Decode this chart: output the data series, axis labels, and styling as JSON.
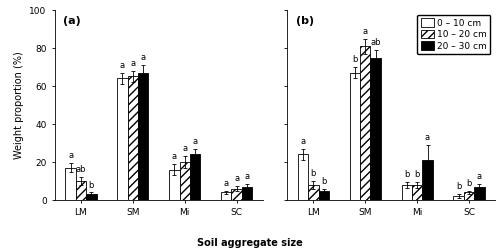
{
  "panel_a": {
    "label": "(a)",
    "categories": [
      "LM",
      "SM",
      "Mi",
      "SC"
    ],
    "values": {
      "0-10": [
        17,
        64,
        16,
        4
      ],
      "10-20": [
        10,
        65,
        20,
        6
      ],
      "20-30": [
        3,
        67,
        24,
        7
      ]
    },
    "errors": {
      "0-10": [
        2.5,
        3,
        3,
        1
      ],
      "10-20": [
        2,
        3,
        3,
        1.5
      ],
      "20-30": [
        1,
        4,
        3,
        1.5
      ]
    },
    "sig_labels": {
      "LM": [
        "a",
        "ab",
        "b"
      ],
      "SM": [
        "a",
        "a",
        "a"
      ],
      "Mi": [
        "a",
        "a",
        "a"
      ],
      "SC": [
        "a",
        "a",
        "a"
      ]
    }
  },
  "panel_b": {
    "label": "(b)",
    "categories": [
      "LM",
      "SM",
      "Mi",
      "SC"
    ],
    "values": {
      "0-10": [
        24,
        67,
        8,
        2
      ],
      "10-20": [
        8,
        81,
        8,
        4
      ],
      "20-30": [
        5,
        75,
        21,
        7
      ]
    },
    "errors": {
      "0-10": [
        3,
        3,
        1.5,
        1
      ],
      "10-20": [
        2,
        4,
        1.5,
        1
      ],
      "20-30": [
        1,
        4,
        8,
        1.5
      ]
    },
    "sig_labels": {
      "LM": [
        "a",
        "b",
        "b"
      ],
      "SM": [
        "b",
        "a",
        "ab"
      ],
      "Mi": [
        "b",
        "b",
        "a"
      ],
      "SC": [
        "b",
        "b",
        "a"
      ]
    }
  },
  "legend_labels": [
    "0 – 10 cm",
    "10 – 20 cm",
    "20 – 30 cm"
  ],
  "bar_colors": [
    "white",
    "white",
    "black"
  ],
  "bar_hatches": [
    null,
    "////",
    null
  ],
  "ylabel": "Weight proportion (%)",
  "xlabel": "Soil aggregate size",
  "ylim": [
    0,
    100
  ],
  "yticks": [
    0,
    20,
    40,
    60,
    80,
    100
  ],
  "bar_width": 0.2,
  "fontsize_label": 7,
  "fontsize_tick": 6.5,
  "fontsize_sig": 6,
  "fontsize_legend": 6.5,
  "fontsize_panel": 8
}
